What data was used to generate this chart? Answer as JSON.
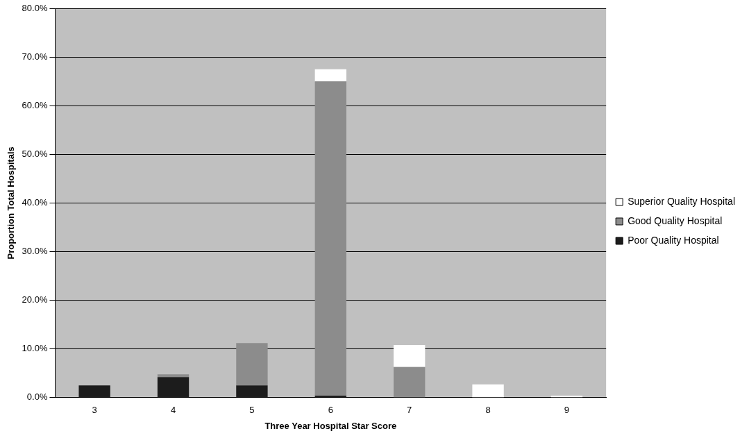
{
  "chart_data": {
    "type": "bar",
    "stacked": true,
    "xlabel": "Three Year Hospital Star Score",
    "ylabel": "Proportion Total Hospitals",
    "categories": [
      "3",
      "4",
      "5",
      "6",
      "7",
      "8",
      "9"
    ],
    "series": [
      {
        "name": "Poor Quality Hospital",
        "color": "#1c1c1c",
        "values": [
          2.5,
          4.2,
          2.5,
          0.4,
          0,
          0,
          0
        ]
      },
      {
        "name": "Good Quality Hospital",
        "color": "#8c8c8c",
        "values": [
          0,
          0.6,
          8.7,
          64.6,
          6.3,
          null,
          0
        ]
      },
      {
        "name": "Superior Quality Hospital",
        "color": "#ffffff",
        "values": [
          0,
          0,
          0,
          2.5,
          4.5,
          2.7,
          0.4
        ]
      }
    ],
    "ylim": [
      0,
      80
    ],
    "yticks": [
      {
        "value": 0,
        "label": "0.0%"
      },
      {
        "value": 10,
        "label": "10.0%"
      },
      {
        "value": 20,
        "label": "20.0%"
      },
      {
        "value": 30,
        "label": "30.0%"
      },
      {
        "value": 40,
        "label": "40.0%"
      },
      {
        "value": 50,
        "label": "50.0%"
      },
      {
        "value": 60,
        "label": "60.0%"
      },
      {
        "value": 70,
        "label": "70.0%"
      },
      {
        "value": 80,
        "label": "80.0%"
      }
    ],
    "grid": "y",
    "legend": "right"
  }
}
